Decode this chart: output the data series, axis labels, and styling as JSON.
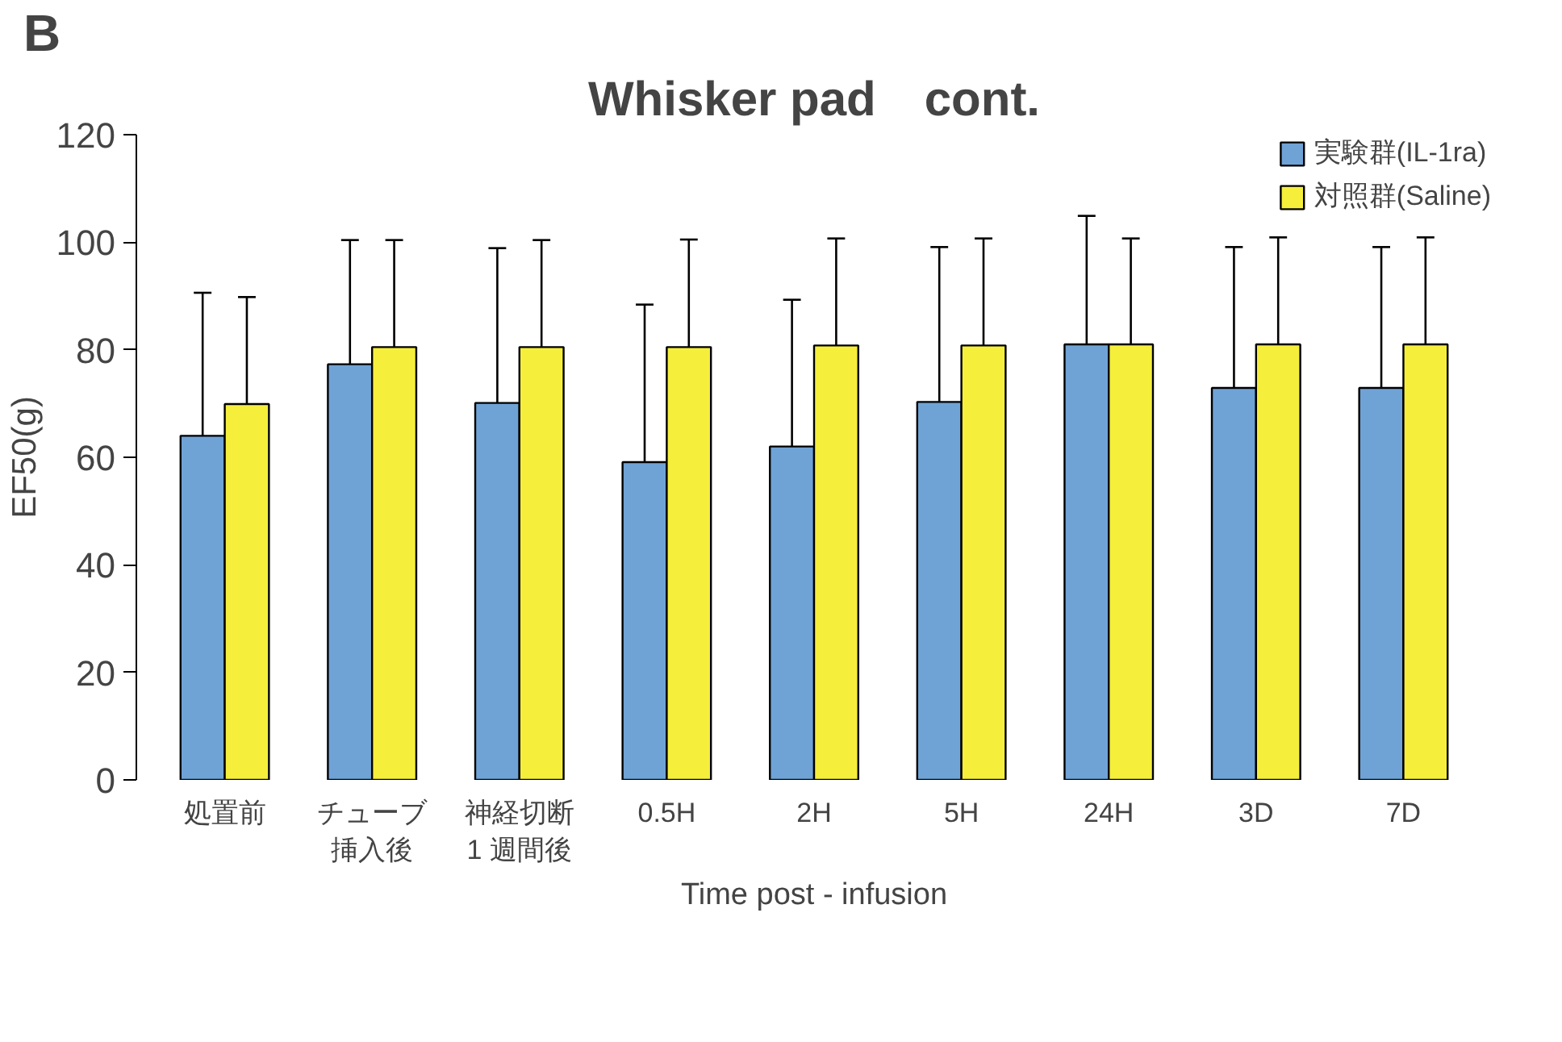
{
  "chart_data": {
    "type": "bar",
    "title": "Whisker pad　cont.",
    "ylabel": "EF50(g)",
    "xlabel": "Time post - infusion",
    "annotations": [
      "B"
    ],
    "categories": [
      "処置前",
      "チューブ挿入後",
      "神経切断1 週間後",
      "0.5H",
      "2H",
      "5H",
      "24H",
      "3D",
      "7D"
    ],
    "series": [
      {
        "name": "実験群(IL-1ra)",
        "color": "#6fa3d6",
        "values": [
          64,
          77.3,
          70.1,
          59.1,
          62,
          70.3,
          81,
          72.9,
          72.9
        ],
        "errors": [
          [
            64,
            90.6
          ],
          [
            77.3,
            100.4
          ],
          [
            70.1,
            98.9
          ],
          [
            59.1,
            88.4
          ],
          [
            62,
            89.3
          ],
          [
            70.3,
            99.1
          ],
          [
            81,
            104.9
          ],
          [
            72.9,
            99.1
          ],
          [
            72.9,
            99.1
          ]
        ]
      },
      {
        "name": "対照群(Saline)",
        "color": "#f5ef3c",
        "values": [
          69.9,
          80.5,
          80.5,
          80.5,
          80.8,
          80.8,
          81,
          81,
          81
        ],
        "errors": [
          [
            69.9,
            89.8
          ],
          [
            80.5,
            100.4
          ],
          [
            80.5,
            100.4
          ],
          [
            80.5,
            100.5
          ],
          [
            80.8,
            100.7
          ],
          [
            80.8,
            100.7
          ],
          [
            81,
            100.7
          ],
          [
            81,
            100.9
          ],
          [
            81,
            100.9
          ]
        ]
      }
    ],
    "ylim": [
      0,
      120
    ],
    "yticks": [
      0,
      20,
      40,
      60,
      80,
      100,
      120
    ],
    "grid": false,
    "legend": "top right"
  }
}
